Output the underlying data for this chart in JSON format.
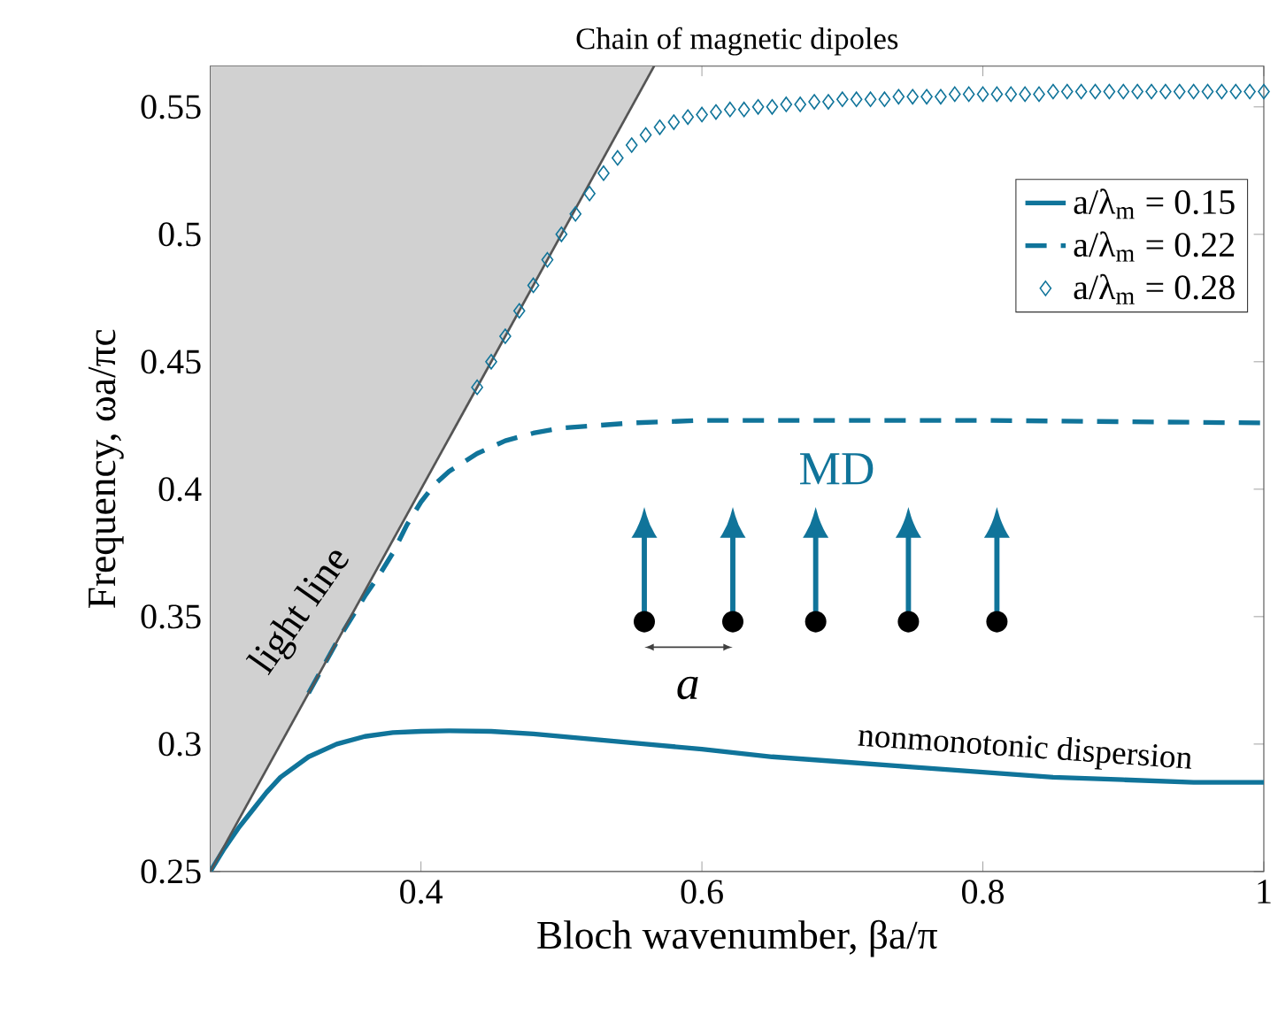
{
  "chart_data": {
    "type": "line",
    "title": "Chain of magnetic dipoles",
    "xlabel": "Bloch wavenumber, βa/π",
    "ylabel": "Frequency, ωa/πc",
    "xlim": [
      0.25,
      1
    ],
    "ylim": [
      0.25,
      0.566
    ],
    "xticks": [
      0.4,
      0.6,
      0.8,
      1
    ],
    "yticks": [
      0.25,
      0.3,
      0.35,
      0.4,
      0.45,
      0.5,
      0.55
    ],
    "legend": "top right",
    "grid": false,
    "series": [
      {
        "name": "a/λ$_{m}$ = 0.15",
        "color": "#10749a",
        "line_style": "solid",
        "x": [
          0.25,
          0.26,
          0.27,
          0.28,
          0.29,
          0.3,
          0.32,
          0.34,
          0.36,
          0.38,
          0.4,
          0.42,
          0.45,
          0.48,
          0.52,
          0.56,
          0.6,
          0.65,
          0.7,
          0.75,
          0.8,
          0.85,
          0.9,
          0.95,
          1
        ],
        "values": [
          0.25,
          0.259,
          0.267,
          0.274,
          0.281,
          0.287,
          0.295,
          0.3,
          0.303,
          0.3045,
          0.305,
          0.3052,
          0.305,
          0.304,
          0.302,
          0.3,
          0.298,
          0.295,
          0.293,
          0.291,
          0.289,
          0.287,
          0.286,
          0.285,
          0.285
        ]
      },
      {
        "name": "a/λ$_{m}$ = 0.22",
        "color": "#10749a",
        "line_style": "dashed",
        "x": [
          0.32,
          0.34,
          0.36,
          0.37,
          0.38,
          0.39,
          0.4,
          0.41,
          0.42,
          0.44,
          0.46,
          0.48,
          0.5,
          0.55,
          0.6,
          0.8,
          1
        ],
        "values": [
          0.32,
          0.34,
          0.358,
          0.366,
          0.375,
          0.386,
          0.395,
          0.402,
          0.407,
          0.414,
          0.419,
          0.422,
          0.424,
          0.426,
          0.427,
          0.427,
          0.426
        ]
      },
      {
        "name": "a/λ$_{m}$ = 0.28",
        "color": "#10749a",
        "type": "scatter",
        "marker": "diamond",
        "x": [
          0.44,
          0.45,
          0.46,
          0.47,
          0.48,
          0.49,
          0.5,
          0.51,
          0.52,
          0.53,
          0.54,
          0.55,
          0.56,
          0.57,
          0.58,
          0.59,
          0.6,
          0.61,
          0.62,
          0.63,
          0.64,
          0.65,
          0.66,
          0.67,
          0.68,
          0.69,
          0.7,
          0.71,
          0.72,
          0.73,
          0.74,
          0.75,
          0.76,
          0.77,
          0.78,
          0.79,
          0.8,
          0.81,
          0.82,
          0.83,
          0.84,
          0.85,
          0.86,
          0.87,
          0.88,
          0.89,
          0.9,
          0.91,
          0.92,
          0.93,
          0.94,
          0.95,
          0.96,
          0.97,
          0.98,
          0.99,
          1
        ],
        "values": [
          0.44,
          0.45,
          0.46,
          0.47,
          0.48,
          0.49,
          0.5,
          0.508,
          0.516,
          0.524,
          0.53,
          0.535,
          0.539,
          0.542,
          0.544,
          0.546,
          0.547,
          0.548,
          0.549,
          0.549,
          0.55,
          0.55,
          0.551,
          0.551,
          0.552,
          0.552,
          0.553,
          0.553,
          0.553,
          0.553,
          0.554,
          0.554,
          0.554,
          0.554,
          0.555,
          0.555,
          0.555,
          0.555,
          0.555,
          0.555,
          0.555,
          0.556,
          0.556,
          0.556,
          0.556,
          0.556,
          0.556,
          0.556,
          0.556,
          0.556,
          0.556,
          0.556,
          0.556,
          0.556,
          0.556,
          0.556,
          0.556
        ]
      },
      {
        "color": "#555555",
        "line_style": "solid",
        "x": [
          0.25,
          0.566
        ],
        "values": [
          0.25,
          0.566
        ]
      }
    ],
    "annotations": [
      "MD",
      "a",
      "light line",
      "nonmonotonic dispersion"
    ]
  }
}
